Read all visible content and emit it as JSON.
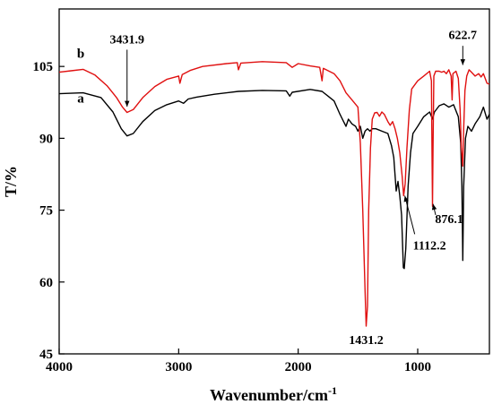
{
  "chart_data": {
    "type": "line",
    "xlabel": "Wavenumber/cm",
    "xlabel_sup": "-1",
    "ylabel": "T/%",
    "xlim": [
      4000,
      400
    ],
    "ylim": [
      45,
      117
    ],
    "x_ticks": [
      4000,
      3000,
      2000,
      1000
    ],
    "y_ticks": [
      45,
      60,
      75,
      90,
      105
    ],
    "x_tick_labels": [
      "4000",
      "3000",
      "2000",
      "1000"
    ],
    "y_tick_labels": [
      "45",
      "60",
      "75",
      "90",
      "105"
    ],
    "grid": false,
    "series": [
      {
        "name": "a",
        "color": "#000000",
        "points": [
          [
            4000,
            99.3
          ],
          [
            3800,
            99.5
          ],
          [
            3650,
            98.5
          ],
          [
            3550,
            95.5
          ],
          [
            3480,
            92
          ],
          [
            3431.9,
            90.5
          ],
          [
            3380,
            91
          ],
          [
            3300,
            93.5
          ],
          [
            3200,
            95.8
          ],
          [
            3100,
            97
          ],
          [
            3000,
            97.8
          ],
          [
            2960,
            97.3
          ],
          [
            2920,
            98.2
          ],
          [
            2850,
            98.6
          ],
          [
            2700,
            99.2
          ],
          [
            2500,
            99.8
          ],
          [
            2300,
            100
          ],
          [
            2100,
            99.9
          ],
          [
            2070,
            98.8
          ],
          [
            2050,
            99.6
          ],
          [
            1900,
            100.2
          ],
          [
            1800,
            99.8
          ],
          [
            1750,
            98.8
          ],
          [
            1700,
            97.8
          ],
          [
            1650,
            95
          ],
          [
            1620,
            93.5
          ],
          [
            1600,
            92.5
          ],
          [
            1580,
            94
          ],
          [
            1550,
            93
          ],
          [
            1520,
            92.5
          ],
          [
            1500,
            91.5
          ],
          [
            1480,
            92.5
          ],
          [
            1460,
            90
          ],
          [
            1440,
            91.5
          ],
          [
            1420,
            92
          ],
          [
            1400,
            91.5
          ],
          [
            1380,
            92
          ],
          [
            1350,
            92
          ],
          [
            1300,
            91.5
          ],
          [
            1250,
            91
          ],
          [
            1220,
            88.5
          ],
          [
            1200,
            86
          ],
          [
            1180,
            79
          ],
          [
            1165,
            81
          ],
          [
            1150,
            78
          ],
          [
            1135,
            74
          ],
          [
            1120,
            63
          ],
          [
            1112.2,
            62.8
          ],
          [
            1100,
            67
          ],
          [
            1080,
            80
          ],
          [
            1060,
            87
          ],
          [
            1040,
            91
          ],
          [
            1000,
            92.5
          ],
          [
            950,
            94.5
          ],
          [
            900,
            95.5
          ],
          [
            876.1,
            94
          ],
          [
            860,
            95.5
          ],
          [
            820,
            96.8
          ],
          [
            780,
            97.2
          ],
          [
            740,
            96.5
          ],
          [
            700,
            97
          ],
          [
            660,
            94.5
          ],
          [
            640,
            89
          ],
          [
            630,
            80
          ],
          [
            622.7,
            64.5
          ],
          [
            615,
            80
          ],
          [
            600,
            90
          ],
          [
            580,
            92.5
          ],
          [
            550,
            91.5
          ],
          [
            520,
            93
          ],
          [
            480,
            94.5
          ],
          [
            450,
            96.5
          ],
          [
            420,
            94
          ],
          [
            400,
            95
          ]
        ]
      },
      {
        "name": "b",
        "color": "#e01010",
        "points": [
          [
            4000,
            103.8
          ],
          [
            3900,
            104.1
          ],
          [
            3800,
            104.4
          ],
          [
            3700,
            103.2
          ],
          [
            3600,
            101
          ],
          [
            3520,
            98.5
          ],
          [
            3470,
            96.5
          ],
          [
            3431.9,
            95.4
          ],
          [
            3380,
            96
          ],
          [
            3300,
            98.5
          ],
          [
            3200,
            100.8
          ],
          [
            3100,
            102.3
          ],
          [
            3000,
            103
          ],
          [
            2990,
            101.5
          ],
          [
            2970,
            103.3
          ],
          [
            2900,
            104.2
          ],
          [
            2800,
            105
          ],
          [
            2600,
            105.6
          ],
          [
            2510,
            105.8
          ],
          [
            2500,
            104.3
          ],
          [
            2480,
            105.7
          ],
          [
            2300,
            106
          ],
          [
            2100,
            105.8
          ],
          [
            2050,
            104.8
          ],
          [
            2000,
            105.6
          ],
          [
            1900,
            105.1
          ],
          [
            1820,
            104.8
          ],
          [
            1800,
            102
          ],
          [
            1790,
            104.6
          ],
          [
            1700,
            103.5
          ],
          [
            1650,
            102
          ],
          [
            1600,
            99.5
          ],
          [
            1550,
            98
          ],
          [
            1500,
            96.5
          ],
          [
            1480,
            89
          ],
          [
            1460,
            75
          ],
          [
            1440,
            58
          ],
          [
            1431.2,
            50.8
          ],
          [
            1420,
            55
          ],
          [
            1410,
            75
          ],
          [
            1395,
            88
          ],
          [
            1380,
            94
          ],
          [
            1360,
            95.3
          ],
          [
            1340,
            95.4
          ],
          [
            1320,
            94.6
          ],
          [
            1300,
            95.5
          ],
          [
            1280,
            95
          ],
          [
            1250,
            93.5
          ],
          [
            1230,
            92.7
          ],
          [
            1210,
            93.5
          ],
          [
            1190,
            92
          ],
          [
            1170,
            90
          ],
          [
            1150,
            87
          ],
          [
            1130,
            82
          ],
          [
            1118,
            78
          ],
          [
            1112.2,
            79
          ],
          [
            1105,
            80.5
          ],
          [
            1090,
            88
          ],
          [
            1070,
            96
          ],
          [
            1050,
            100.3
          ],
          [
            1000,
            102
          ],
          [
            950,
            103
          ],
          [
            900,
            104
          ],
          [
            885,
            102
          ],
          [
            880,
            86
          ],
          [
            876.1,
            75.8
          ],
          [
            872,
            88
          ],
          [
            865,
            103
          ],
          [
            850,
            104
          ],
          [
            820,
            104
          ],
          [
            800,
            103.8
          ],
          [
            780,
            104
          ],
          [
            760,
            103.5
          ],
          [
            740,
            104.3
          ],
          [
            720,
            103
          ],
          [
            712,
            98
          ],
          [
            705,
            103.5
          ],
          [
            680,
            104
          ],
          [
            660,
            102.5
          ],
          [
            645,
            96
          ],
          [
            635,
            88
          ],
          [
            622.7,
            84.2
          ],
          [
            615,
            92
          ],
          [
            605,
            100
          ],
          [
            590,
            103
          ],
          [
            570,
            104.3
          ],
          [
            550,
            103.8
          ],
          [
            520,
            103
          ],
          [
            490,
            103.5
          ],
          [
            470,
            102.8
          ],
          [
            450,
            103.5
          ],
          [
            420,
            101.5
          ],
          [
            400,
            101.3
          ]
        ]
      }
    ],
    "series_labels": [
      {
        "text": "a",
        "x": 3820,
        "y": 97.5
      },
      {
        "text": "b",
        "x": 3820,
        "y": 106.8
      }
    ],
    "annotations": [
      {
        "text": "3431.9",
        "tx": 3431.9,
        "ty": 109.8,
        "ax1": 3431.9,
        "ay1": 108.5,
        "ax2": 3431.9,
        "ay2": 96.6,
        "align": "middle"
      },
      {
        "text": "622.7",
        "tx": 622.7,
        "ty": 110.7,
        "ax1": 622.7,
        "ay1": 109.3,
        "ax2": 622.7,
        "ay2": 105.3,
        "align": "middle"
      },
      {
        "text": "1431.2",
        "tx": 1431.2,
        "ty": 47.1,
        "ax1": null,
        "ay1": null,
        "ax2": null,
        "ay2": null,
        "align": "middle"
      },
      {
        "text": "876.1",
        "tx": 855,
        "ty": 72.3,
        "ax1": 850,
        "ay1": 74,
        "ax2": 872,
        "ay2": 76.3,
        "align": "start"
      },
      {
        "text": "1112.2",
        "tx": 1040,
        "ty": 66.8,
        "ax1": 1025,
        "ay1": 70,
        "ax2": 1108,
        "ay2": 78,
        "align": "start"
      }
    ]
  }
}
